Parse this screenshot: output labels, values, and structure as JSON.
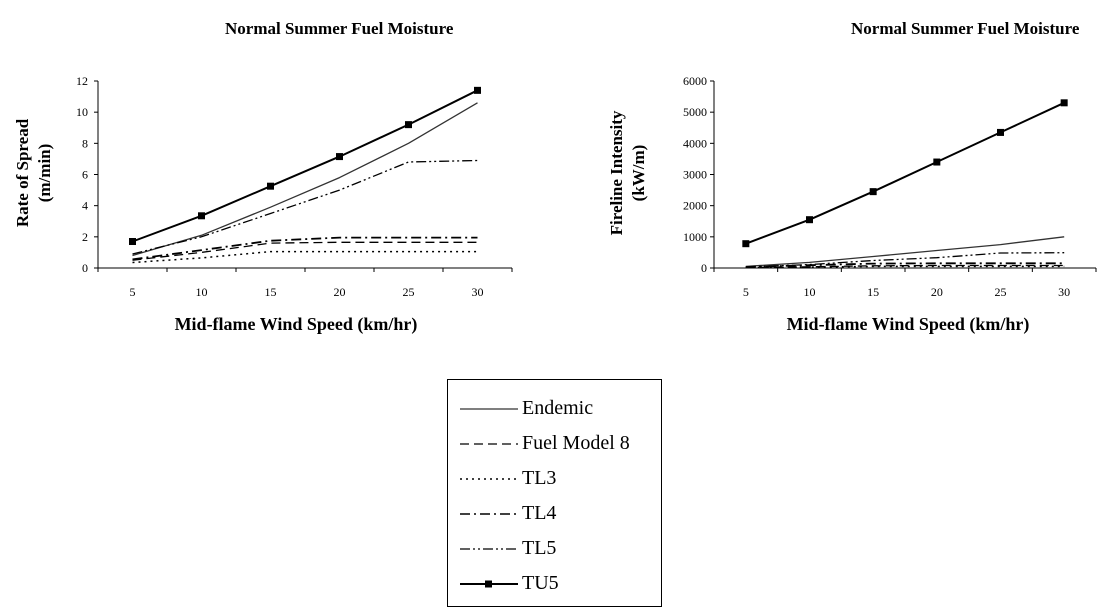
{
  "chart_data": [
    {
      "type": "line",
      "title": "Normal Summer Fuel Moisture",
      "xlabel": "Mid-flame Wind Speed (km/hr)",
      "ylabel_line1": "Rate of Spread",
      "ylabel_line2": "(m/min)",
      "ylim": [
        0,
        12
      ],
      "yticks": [
        0,
        2,
        4,
        6,
        8,
        10,
        12
      ],
      "x": [
        5,
        10,
        15,
        20,
        25,
        30
      ],
      "xticks": [
        "5",
        "10",
        "15",
        "20",
        "25",
        "30"
      ],
      "series": [
        {
          "name": "Endemic",
          "values": [
            0.8,
            2.1,
            3.9,
            5.8,
            8.0,
            10.6
          ]
        },
        {
          "name": "Fuel Model 8",
          "values": [
            0.5,
            1.0,
            1.6,
            1.65,
            1.65,
            1.65
          ]
        },
        {
          "name": "TL3",
          "values": [
            0.35,
            0.65,
            1.05,
            1.05,
            1.05,
            1.05
          ]
        },
        {
          "name": "TL4",
          "values": [
            0.55,
            1.15,
            1.75,
            1.95,
            1.95,
            1.95
          ]
        },
        {
          "name": "TL5",
          "values": [
            0.9,
            2.0,
            3.5,
            5.0,
            6.8,
            6.9
          ]
        },
        {
          "name": "TU5",
          "values": [
            1.7,
            3.35,
            5.25,
            7.15,
            9.2,
            11.4
          ]
        }
      ]
    },
    {
      "type": "line",
      "title": "Normal Summer Fuel Moisture",
      "xlabel": "Mid-flame Wind Speed (km/hr)",
      "ylabel_line1": "Fireline Intensity",
      "ylabel_line2": "(kW/m)",
      "ylim": [
        0,
        6000
      ],
      "yticks": [
        0,
        1000,
        2000,
        3000,
        4000,
        5000,
        6000
      ],
      "x": [
        5,
        10,
        15,
        20,
        25,
        30
      ],
      "xticks": [
        "5",
        "10",
        "15",
        "20",
        "25",
        "30"
      ],
      "series": [
        {
          "name": "Endemic",
          "values": [
            50,
            180,
            370,
            560,
            750,
            1000
          ]
        },
        {
          "name": "Fuel Model 8",
          "values": [
            20,
            40,
            70,
            80,
            80,
            80
          ]
        },
        {
          "name": "TL3",
          "values": [
            10,
            30,
            50,
            50,
            50,
            50
          ]
        },
        {
          "name": "TL4",
          "values": [
            30,
            90,
            140,
            150,
            150,
            150
          ]
        },
        {
          "name": "TL5",
          "values": [
            40,
            110,
            240,
            330,
            480,
            490
          ]
        },
        {
          "name": "TU5",
          "values": [
            780,
            1550,
            2450,
            3400,
            4350,
            5300
          ]
        }
      ]
    }
  ],
  "legend": {
    "items": [
      {
        "label": "Endemic",
        "style": "solid-thin"
      },
      {
        "label": "Fuel Model 8",
        "style": "long-dash"
      },
      {
        "label": "TL3",
        "style": "dotted"
      },
      {
        "label": "TL4",
        "style": "dash-dot"
      },
      {
        "label": "TL5",
        "style": "dash-dot-dot"
      },
      {
        "label": "TU5",
        "style": "solid-square-marker"
      }
    ]
  }
}
